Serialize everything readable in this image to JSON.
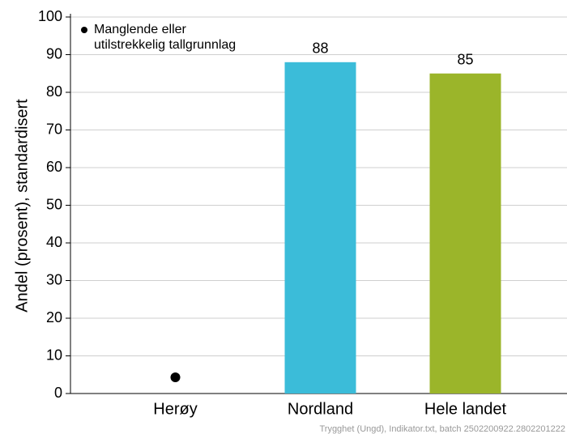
{
  "chart_data": {
    "type": "bar",
    "ylabel": "Andel (prosent), standardisert",
    "categories": [
      "Herøy",
      "Nordland",
      "Hele landet"
    ],
    "values": [
      null,
      88,
      85
    ],
    "colors": [
      null,
      "#3bbcd9",
      "#9bb52a"
    ],
    "missing_note": [
      "Manglende eller",
      "utilstrekkelig tallgrunnlag"
    ],
    "footer": "Trygghet (Ungd), Indikator.txt, batch 2502200922.2802201222",
    "ylim": [
      0,
      100
    ],
    "yticks": [
      0,
      10,
      20,
      30,
      40,
      50,
      60,
      70,
      80,
      90,
      100
    ],
    "grid": true
  }
}
